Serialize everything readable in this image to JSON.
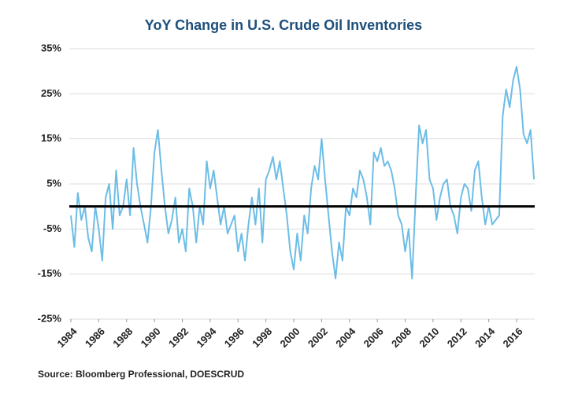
{
  "chart_data": {
    "type": "line",
    "title": "YoY Change in U.S. Crude Oil Inventories",
    "source": "Source: Bloomberg Professional, DOESCRUD",
    "color": "#6cbde6",
    "x": [
      1984,
      1984.25,
      1984.5,
      1984.75,
      1985,
      1985.25,
      1985.5,
      1985.75,
      1986,
      1986.25,
      1986.5,
      1986.75,
      1987,
      1987.25,
      1987.5,
      1987.75,
      1988,
      1988.25,
      1988.5,
      1988.75,
      1989,
      1989.25,
      1989.5,
      1989.75,
      1990,
      1990.25,
      1990.5,
      1990.75,
      1991,
      1991.25,
      1991.5,
      1991.75,
      1992,
      1992.25,
      1992.5,
      1992.75,
      1993,
      1993.25,
      1993.5,
      1993.75,
      1994,
      1994.25,
      1994.5,
      1994.75,
      1995,
      1995.25,
      1995.5,
      1995.75,
      1996,
      1996.25,
      1996.5,
      1996.75,
      1997,
      1997.25,
      1997.5,
      1997.75,
      1998,
      1998.25,
      1998.5,
      1998.75,
      1999,
      1999.25,
      1999.5,
      1999.75,
      2000,
      2000.25,
      2000.5,
      2000.75,
      2001,
      2001.25,
      2001.5,
      2001.75,
      2002,
      2002.25,
      2002.5,
      2002.75,
      2003,
      2003.25,
      2003.5,
      2003.75,
      2004,
      2004.25,
      2004.5,
      2004.75,
      2005,
      2005.25,
      2005.5,
      2005.75,
      2006,
      2006.25,
      2006.5,
      2006.75,
      2007,
      2007.25,
      2007.5,
      2007.75,
      2008,
      2008.25,
      2008.5,
      2008.75,
      2009,
      2009.25,
      2009.5,
      2009.75,
      2010,
      2010.25,
      2010.5,
      2010.75,
      2011,
      2011.25,
      2011.5,
      2011.75,
      2012,
      2012.25,
      2012.5,
      2012.75,
      2013,
      2013.25,
      2013.5,
      2013.75,
      2014,
      2014.25,
      2014.5,
      2014.75,
      2015,
      2015.25,
      2015.5,
      2015.75,
      2016,
      2016.25,
      2016.5,
      2016.75,
      2017,
      2017.25
    ],
    "values": [
      -2,
      -9,
      3,
      -3,
      0,
      -7,
      -10,
      0,
      -5,
      -12,
      2,
      5,
      -5,
      8,
      -2,
      0,
      6,
      -2,
      13,
      5,
      0,
      -4,
      -8,
      0,
      12,
      17,
      8,
      0,
      -6,
      -3,
      2,
      -8,
      -5,
      -10,
      4,
      0,
      -8,
      0,
      -4,
      10,
      4,
      8,
      2,
      -4,
      0,
      -6,
      -4,
      -2,
      -10,
      -6,
      -12,
      -4,
      2,
      -4,
      4,
      -8,
      6,
      8,
      11,
      6,
      10,
      4,
      -2,
      -10,
      -14,
      -6,
      -12,
      -2,
      -6,
      4,
      9,
      6,
      15,
      6,
      -2,
      -10,
      -16,
      -8,
      -12,
      0,
      -2,
      4,
      2,
      8,
      6,
      2,
      -4,
      12,
      10,
      13,
      9,
      10,
      8,
      4,
      -2,
      -4,
      -10,
      -5,
      -16,
      2,
      18,
      14,
      17,
      6,
      4,
      -3,
      2,
      5,
      6,
      0,
      -2,
      -6,
      2,
      5,
      4,
      -1,
      8,
      10,
      2,
      -4,
      0,
      -4,
      -3,
      -2,
      20,
      26,
      22,
      28,
      31,
      26,
      16,
      14,
      17,
      6
    ],
    "xlim": [
      1984,
      2017.3
    ],
    "xticks": [
      1984,
      1986,
      1988,
      1990,
      1992,
      1994,
      1996,
      1998,
      2000,
      2002,
      2004,
      2006,
      2008,
      2010,
      2012,
      2014,
      2016
    ],
    "ylim": [
      -25,
      35
    ],
    "yticks": [
      {
        "value": -25,
        "label": "-25%"
      },
      {
        "value": -15,
        "label": "-15%"
      },
      {
        "value": -5,
        "label": "-5%"
      },
      {
        "value": 5,
        "label": "5%"
      },
      {
        "value": 15,
        "label": "15%"
      },
      {
        "value": 25,
        "label": "25%"
      },
      {
        "value": 35,
        "label": "35%"
      }
    ],
    "grid": true,
    "hline": {
      "value": 0,
      "color": "#000000"
    }
  }
}
